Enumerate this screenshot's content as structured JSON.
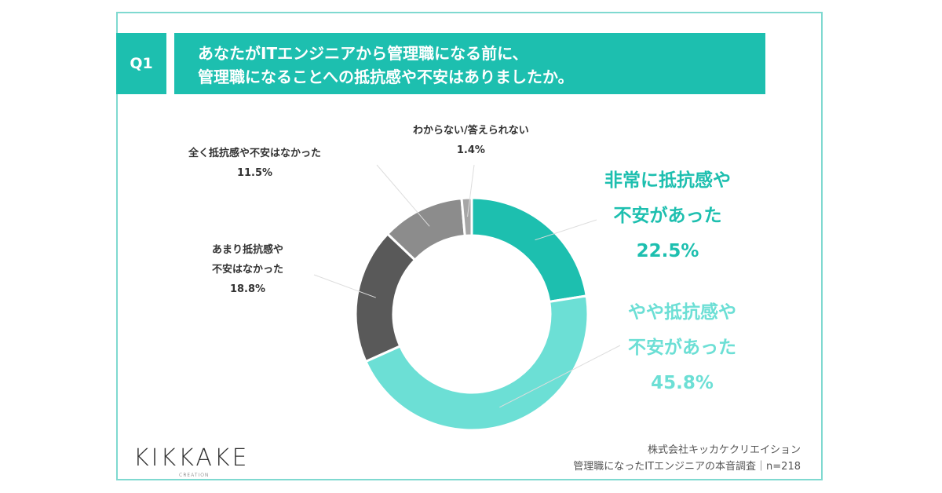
{
  "question": {
    "number": "Q1",
    "line1": "あなたがITエンジニアから管理職になる前に、",
    "line2": "管理職になることへの抵抗感や不安はありましたか。"
  },
  "chart_data": {
    "type": "pie",
    "donut": true,
    "categories": [
      "非常に抵抗感や不安があった",
      "やや抵抗感や不安があった",
      "あまり抵抗感や不安はなかった",
      "全く抵抗感や不安はなかった",
      "わからない/答えられない"
    ],
    "values": [
      22.5,
      45.8,
      18.8,
      11.5,
      1.4
    ],
    "value_labels": [
      "22.5%",
      "45.8%",
      "18.8%",
      "11.5%",
      "1.4%"
    ],
    "colors": [
      "#1dbfaf",
      "#6cdfd5",
      "#595959",
      "#8c8c8c",
      "#a6a6a6"
    ],
    "label_lines": [
      [
        "非常に抵抗感や",
        "不安があった"
      ],
      [
        "やや抵抗感や",
        "不安があった"
      ],
      [
        "あまり抵抗感や",
        "不安はなかった"
      ],
      [
        "全く抵抗感や不安はなかった"
      ],
      [
        "わからない/答えられない"
      ]
    ]
  },
  "footer": {
    "logo": "KIKKAKE",
    "logo_sub": "CREATION",
    "company": "株式会社キッカケクリエイション",
    "survey": "管理職になったITエンジニアの本音調査｜n=218"
  }
}
